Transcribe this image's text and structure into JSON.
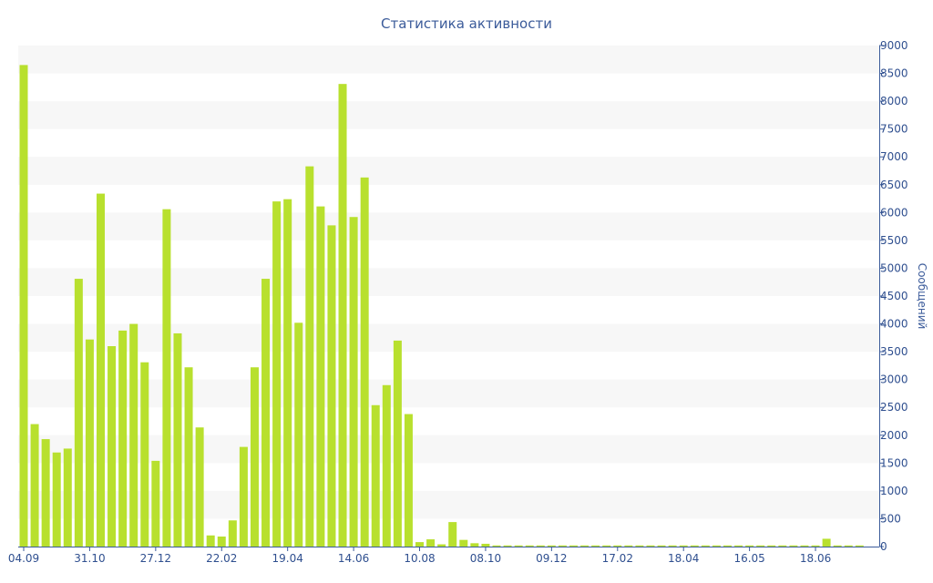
{
  "chart_data": {
    "type": "bar",
    "title": "Статистика активности",
    "ylabel": "Сообщений",
    "xlabel": "",
    "ylim": [
      0,
      9000
    ],
    "y_ticks": [
      0,
      500,
      1000,
      1500,
      2000,
      2500,
      3000,
      3500,
      4000,
      4500,
      5000,
      5500,
      6000,
      6500,
      7000,
      7500,
      8000,
      8500,
      9000
    ],
    "y_axis_position": "right",
    "grid": "alternating horizontal bands",
    "bar_color": "#b8e02e",
    "x_tick_labels": [
      {
        "index": 0,
        "label": "04.09"
      },
      {
        "index": 6,
        "label": "31.10"
      },
      {
        "index": 12,
        "label": "27.12"
      },
      {
        "index": 18,
        "label": "22.02"
      },
      {
        "index": 24,
        "label": "19.04"
      },
      {
        "index": 30,
        "label": "14.06"
      },
      {
        "index": 36,
        "label": "10.08"
      },
      {
        "index": 42,
        "label": "08.10"
      },
      {
        "index": 48,
        "label": "09.12"
      },
      {
        "index": 54,
        "label": "17.02"
      },
      {
        "index": 60,
        "label": "18.04"
      },
      {
        "index": 66,
        "label": "16.05"
      },
      {
        "index": 72,
        "label": "18.06"
      }
    ],
    "values": [
      8650,
      2200,
      1930,
      1690,
      1760,
      4810,
      3720,
      6340,
      3600,
      3880,
      4000,
      3310,
      1540,
      6060,
      3830,
      3220,
      2140,
      200,
      180,
      470,
      1790,
      3220,
      4810,
      6200,
      6240,
      4020,
      6830,
      6110,
      5770,
      8310,
      5920,
      6630,
      2540,
      2900,
      3700,
      2380,
      80,
      130,
      40,
      440,
      120,
      60,
      50,
      20,
      20,
      20,
      20,
      20,
      20,
      20,
      20,
      20,
      20,
      20,
      20,
      20,
      20,
      20,
      20,
      20,
      20,
      20,
      20,
      20,
      20,
      20,
      20,
      20,
      20,
      20,
      20,
      20,
      20,
      140,
      20,
      20,
      20
    ]
  }
}
